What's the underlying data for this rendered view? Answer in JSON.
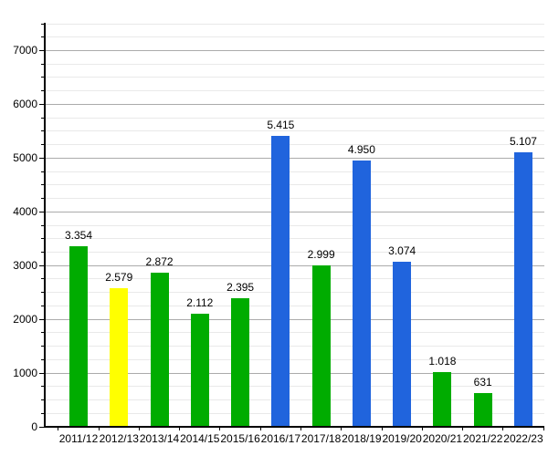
{
  "chart_data": {
    "type": "bar",
    "title": "",
    "xlabel": "",
    "ylabel": "",
    "categories": [
      "2011/12",
      "2012/13",
      "2013/14",
      "2014/15",
      "2015/16",
      "2016/17",
      "2017/18",
      "2018/19",
      "2019/20",
      "2020/21",
      "2021/22",
      "2022/23"
    ],
    "values": [
      3354,
      2579,
      2872,
      2112,
      2395,
      5415,
      2999,
      4950,
      3074,
      1018,
      631,
      5107
    ],
    "value_labels": [
      "3.354",
      "2.579",
      "2.872",
      "2.112",
      "2.395",
      "5.415",
      "2.999",
      "4.950",
      "3.074",
      "1.018",
      "631",
      "5.107"
    ],
    "bar_color_names": [
      "green",
      "yellow",
      "green",
      "green",
      "green",
      "blue",
      "green",
      "blue",
      "blue",
      "green",
      "green",
      "blue"
    ],
    "palette": {
      "green": "#00AC00",
      "yellow": "#FFFF00",
      "blue": "#2064DD"
    },
    "ylim": [
      0,
      7500
    ],
    "y_major_tick_step": 1000,
    "y_minor_tick_step": 250,
    "y_tick_labels": [
      "0",
      "1000",
      "2000",
      "3000",
      "4000",
      "5000",
      "6000",
      "7000"
    ],
    "grid": "major and minor horizontal gridlines on",
    "legend": "none",
    "colors": {
      "background": "#FFFFFF",
      "axis": "#000000",
      "text": "#000000",
      "major_grid": "#ABABAB",
      "minor_grid": "#E9E9E9"
    }
  }
}
